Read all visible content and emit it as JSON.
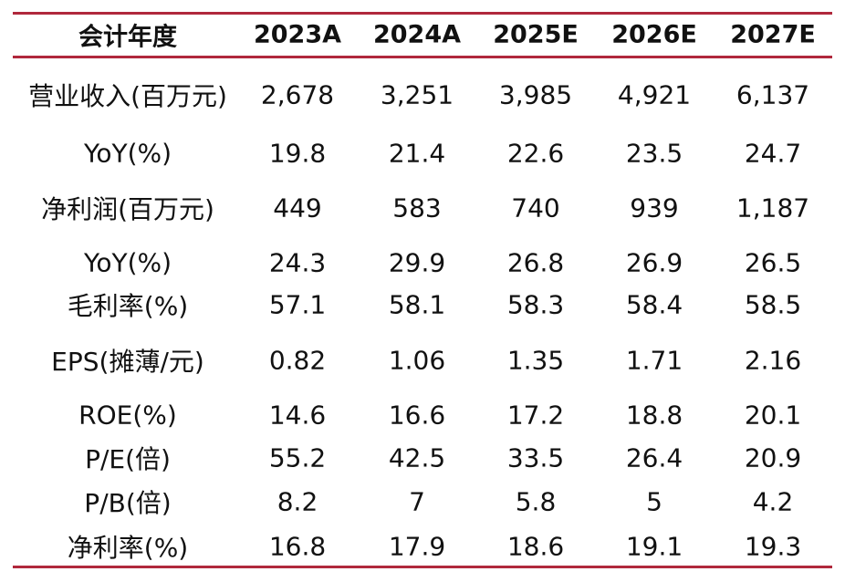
{
  "table": {
    "headers": [
      "会计年度",
      "2023A",
      "2024A",
      "2025E",
      "2026E",
      "2027E"
    ],
    "rows": [
      [
        "营业收入(百万元)",
        "2,678",
        "3,251",
        "3,985",
        "4,921",
        "6,137"
      ],
      [
        "YoY(%)",
        "19.8",
        "21.4",
        "22.6",
        "23.5",
        "24.7"
      ],
      [
        "净利润(百万元)",
        "449",
        "583",
        "740",
        "939",
        "1,187"
      ],
      [
        "YoY(%)",
        "24.3",
        "29.9",
        "26.8",
        "26.9",
        "26.5"
      ],
      [
        "毛利率(%)",
        "57.1",
        "58.1",
        "58.3",
        "58.4",
        "58.5"
      ],
      [
        "EPS(摊薄/元)",
        "0.82",
        "1.06",
        "1.35",
        "1.71",
        "2.16"
      ],
      [
        "ROE(%)",
        "14.6",
        "16.6",
        "17.2",
        "18.8",
        "20.1"
      ],
      [
        "P/E(倍)",
        "55.2",
        "42.5",
        "33.5",
        "26.4",
        "20.9"
      ],
      [
        "P/B(倍)",
        "8.2",
        "7",
        "5.8",
        "5",
        "4.2"
      ],
      [
        "净利率(%)",
        "16.8",
        "17.9",
        "18.6",
        "19.1",
        "19.3"
      ]
    ]
  },
  "colors": {
    "rule": "#b0283c",
    "text": "#111111",
    "background": "#ffffff"
  }
}
